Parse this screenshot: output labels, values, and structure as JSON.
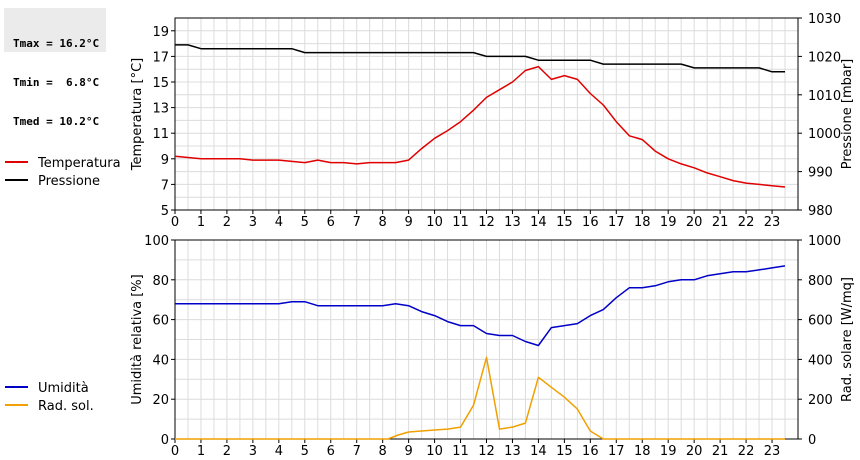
{
  "stats": {
    "tmax": "Tmax = 16.2°C",
    "tmin": "Tmin =  6.8°C",
    "tmed": "Tmed = 10.2°C"
  },
  "chart_data": [
    {
      "type": "line",
      "x_ticks": [
        0,
        1,
        2,
        3,
        4,
        5,
        6,
        7,
        8,
        9,
        10,
        11,
        12,
        13,
        14,
        15,
        16,
        17,
        18,
        19,
        20,
        21,
        22,
        23
      ],
      "xlim": [
        0,
        24
      ],
      "ylabel": "Temperatura [°C]",
      "y2label": "Pressione [mbar]",
      "ylim": [
        5,
        20
      ],
      "y_ticks": [
        5,
        7,
        9,
        11,
        13,
        15,
        17,
        19
      ],
      "y2lim": [
        980,
        1030
      ],
      "y2_ticks": [
        980,
        990,
        1000,
        1010,
        1020,
        1030
      ],
      "grid": true,
      "legend_position": "left",
      "series": [
        {
          "name": "Temperatura",
          "axis": "left",
          "color": "#e00000",
          "x": [
            0,
            0.5,
            1,
            1.5,
            2,
            2.5,
            3,
            3.5,
            4,
            4.5,
            5,
            5.5,
            6,
            6.5,
            7,
            7.5,
            8,
            8.5,
            9,
            9.5,
            10,
            10.5,
            11,
            11.5,
            12,
            12.5,
            13,
            13.5,
            14,
            14.5,
            15,
            15.5,
            16,
            16.5,
            17,
            17.5,
            18,
            18.5,
            19,
            19.5,
            20,
            20.5,
            21,
            21.5,
            22,
            22.5,
            23,
            23.5
          ],
          "values": [
            9.2,
            9.1,
            9.0,
            9.0,
            9.0,
            9.0,
            8.9,
            8.9,
            8.9,
            8.8,
            8.7,
            8.9,
            8.7,
            8.7,
            8.6,
            8.7,
            8.7,
            8.7,
            8.9,
            9.8,
            10.6,
            11.2,
            11.9,
            12.8,
            13.8,
            14.4,
            15.0,
            15.9,
            16.2,
            15.2,
            15.5,
            15.2,
            14.1,
            13.2,
            11.9,
            10.8,
            10.5,
            9.6,
            9.0,
            8.6,
            8.3,
            7.9,
            7.6,
            7.3,
            7.1,
            7.0,
            6.9,
            6.8
          ]
        },
        {
          "name": "Pressione",
          "axis": "right",
          "color": "#000000",
          "x": [
            0,
            0.5,
            1,
            1.5,
            2,
            2.5,
            3,
            3.5,
            4,
            4.5,
            5,
            5.5,
            6,
            6.5,
            7,
            7.5,
            8,
            8.5,
            9,
            9.5,
            10,
            10.5,
            11,
            11.5,
            12,
            12.5,
            13,
            13.5,
            14,
            14.5,
            15,
            15.5,
            16,
            16.5,
            17,
            17.5,
            18,
            18.5,
            19,
            19.5,
            20,
            20.5,
            21,
            21.5,
            22,
            22.5,
            23,
            23.5
          ],
          "values": [
            1023,
            1023,
            1022,
            1022,
            1022,
            1022,
            1022,
            1022,
            1022,
            1022,
            1021,
            1021,
            1021,
            1021,
            1021,
            1021,
            1021,
            1021,
            1021,
            1021,
            1021,
            1021,
            1021,
            1021,
            1020,
            1020,
            1020,
            1020,
            1019,
            1019,
            1019,
            1019,
            1019,
            1018,
            1018,
            1018,
            1018,
            1018,
            1018,
            1018,
            1017,
            1017,
            1017,
            1017,
            1017,
            1017,
            1016,
            1016
          ]
        }
      ]
    },
    {
      "type": "line",
      "x_ticks": [
        0,
        1,
        2,
        3,
        4,
        5,
        6,
        7,
        8,
        9,
        10,
        11,
        12,
        13,
        14,
        15,
        16,
        17,
        18,
        19,
        20,
        21,
        22,
        23
      ],
      "xlim": [
        0,
        24
      ],
      "ylabel": "Umidità relativa [%]",
      "y2label": "Rad. solare [W/mq]",
      "ylim": [
        0,
        100
      ],
      "y_ticks": [
        0,
        20,
        40,
        60,
        80,
        100
      ],
      "y2lim": [
        0,
        1000
      ],
      "y2_ticks": [
        0,
        200,
        400,
        600,
        800,
        1000
      ],
      "grid": true,
      "legend_position": "left",
      "series": [
        {
          "name": "Umidità",
          "axis": "left",
          "color": "#0000c8",
          "x": [
            0,
            0.5,
            1,
            1.5,
            2,
            2.5,
            3,
            3.5,
            4,
            4.5,
            5,
            5.5,
            6,
            6.5,
            7,
            7.5,
            8,
            8.5,
            9,
            9.5,
            10,
            10.5,
            11,
            11.5,
            12,
            12.5,
            13,
            13.5,
            14,
            14.5,
            15,
            15.5,
            16,
            16.5,
            17,
            17.5,
            18,
            18.5,
            19,
            19.5,
            20,
            20.5,
            21,
            21.5,
            22,
            22.5,
            23,
            23.5
          ],
          "values": [
            68,
            68,
            68,
            68,
            68,
            68,
            68,
            68,
            68,
            69,
            69,
            67,
            67,
            67,
            67,
            67,
            67,
            68,
            67,
            64,
            62,
            59,
            57,
            57,
            53,
            52,
            52,
            49,
            47,
            56,
            57,
            58,
            62,
            65,
            71,
            76,
            76,
            77,
            79,
            80,
            80,
            82,
            83,
            84,
            84,
            85,
            86,
            87
          ]
        },
        {
          "name": "Rad. sol.",
          "axis": "right",
          "color": "#f0a000",
          "x": [
            0,
            1,
            2,
            3,
            4,
            5,
            6,
            7,
            8,
            8.2,
            8.6,
            9,
            9.5,
            10,
            10.5,
            11,
            11.5,
            12,
            12.5,
            13,
            13.5,
            14,
            14.5,
            15,
            15.5,
            16,
            16.5,
            17,
            18,
            19,
            20,
            21,
            22,
            23,
            23.5
          ],
          "values": [
            0,
            0,
            0,
            0,
            0,
            0,
            0,
            0,
            0,
            0,
            20,
            35,
            40,
            45,
            50,
            60,
            170,
            410,
            50,
            60,
            80,
            310,
            260,
            210,
            150,
            40,
            0,
            0,
            0,
            0,
            0,
            0,
            0,
            0,
            0
          ]
        }
      ]
    }
  ]
}
